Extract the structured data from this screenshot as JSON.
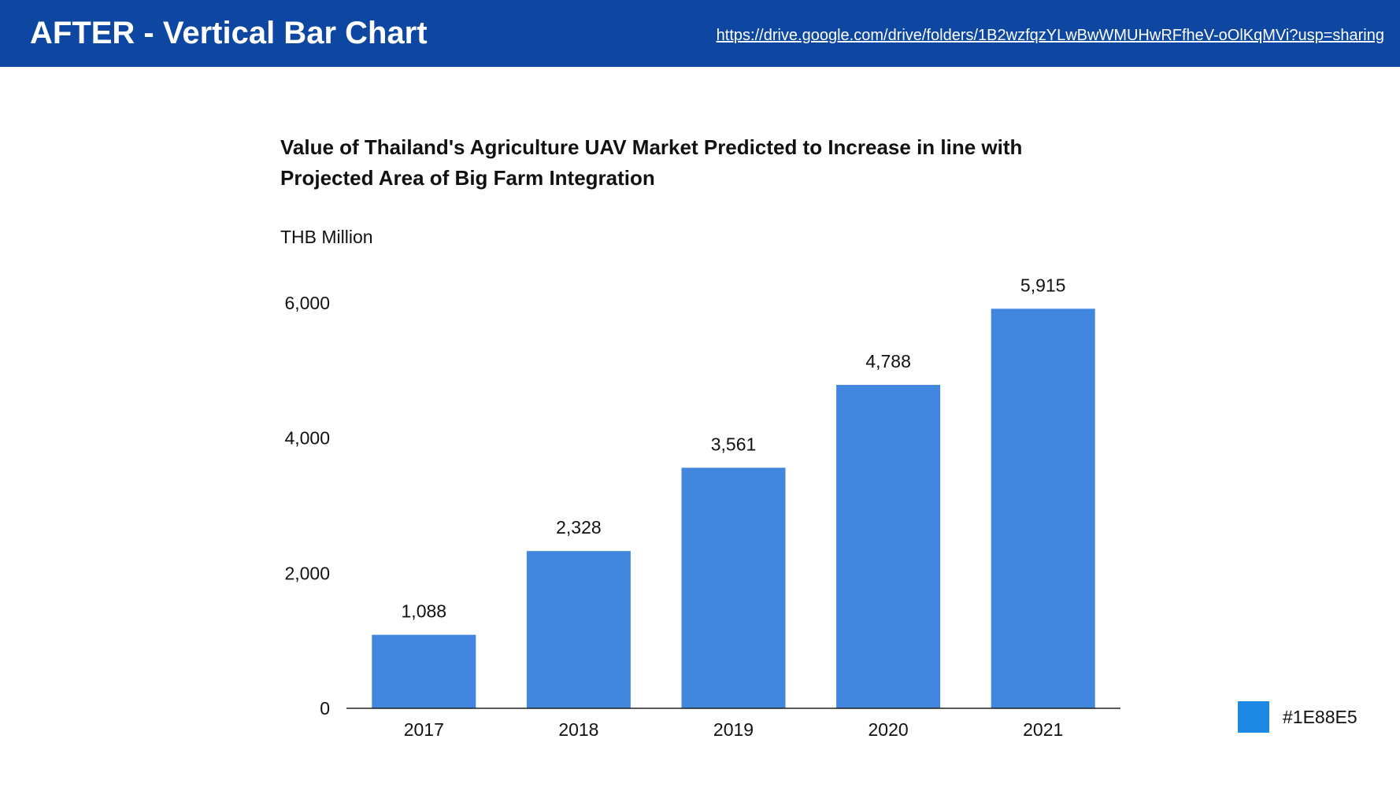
{
  "header": {
    "title": "AFTER - Vertical Bar Chart",
    "link_text": "https://drive.google.com/drive/folders/1B2wzfqzYLwBwWMUHwRFfheV-oOlKqMVi?usp=sharing",
    "background_color": "#0d47a1"
  },
  "chart_data": {
    "type": "bar",
    "title_lines": [
      "Value of Thailand's Agriculture UAV Market Predicted to Increase in line with",
      "Projected Area of Big Farm Integration"
    ],
    "ylabel": "THB Million",
    "xlabel": "",
    "categories": [
      "2017",
      "2018",
      "2019",
      "2020",
      "2021"
    ],
    "values": [
      1088,
      2328,
      3561,
      4788,
      5915
    ],
    "value_labels": [
      "1,088",
      "2,328",
      "3,561",
      "4,788",
      "5,915"
    ],
    "ylim": [
      0,
      6000
    ],
    "yticks": [
      0,
      2000,
      4000,
      6000
    ],
    "ytick_labels": [
      "0",
      "2,000",
      "4,000",
      "6,000"
    ],
    "bar_color": "#4287df",
    "grid": false,
    "legend": "none"
  },
  "swatch": {
    "color": "#1E88E5",
    "label": "#1E88E5"
  }
}
